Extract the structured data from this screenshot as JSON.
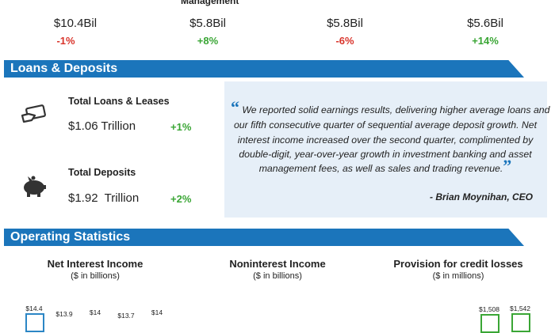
{
  "header_fragment": "Management",
  "metrics": [
    {
      "value": "$10.4Bil",
      "change": "-1%"
    },
    {
      "value": "$5.8Bil",
      "change": "+8%"
    },
    {
      "value": "$5.8Bil",
      "change": "-6%"
    },
    {
      "value": "$5.6Bil",
      "change": "+14%"
    }
  ],
  "loans_deposits": {
    "title": "Loans & Deposits",
    "items": [
      {
        "label": "Total Loans & Leases",
        "value": "$1.06 Trillion",
        "change": "+1%"
      },
      {
        "label": "Total Deposits",
        "value": "$1.92  Trillion",
        "change": "+2%"
      }
    ],
    "quote": {
      "open_mark": "“",
      "close_mark": "”",
      "lines": [
        "We reported solid earnings results, delivering higher average loans and",
        "our fifth consecutive quarter of sequential average deposit growth. Net",
        "interest income increased over the second quarter, complimented by",
        "double-digit, year-over-year growth in investment banking and asset",
        "management fees, as well as sales and trading revenue."
      ],
      "attribution": "- Brian Moynihan, CEO"
    }
  },
  "operating_statistics": {
    "title": "Operating Statistics",
    "charts": [
      {
        "title": "Net Interest Income",
        "unit": "($ in billions)",
        "bar_labels": [
          "$14.4",
          "$13.9",
          "$14",
          "$13.7",
          "$14"
        ]
      },
      {
        "title": "Noninterest Income",
        "unit": "($ in billions)"
      },
      {
        "title": "Provision for credit losses",
        "unit": "($ in millions)",
        "bar_labels": [
          "$1,508",
          "$1,542"
        ]
      }
    ]
  }
}
